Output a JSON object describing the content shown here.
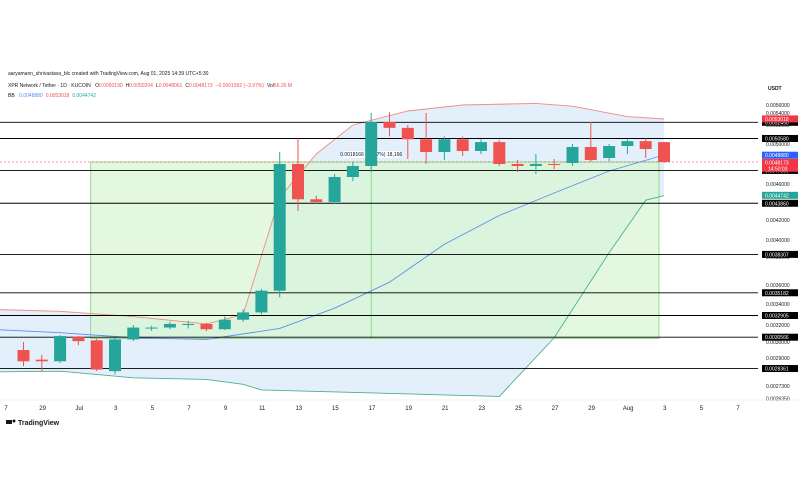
{
  "header": {
    "author_line": "aaryamann_shrivastava_blc created with TradingView.com, Aug 01, 2025 14:39 UTC+5:30",
    "symbol_line": "XPR Network / Tether · 1D · KUCOIN",
    "ohlc": [
      {
        "k": "O",
        "v": "0.0050190"
      },
      {
        "k": "H",
        "v": "0.0050204"
      },
      {
        "k": "L",
        "v": "0.0048061"
      },
      {
        "k": "C",
        "v": "0.0048173"
      },
      {
        "k": "",
        "v": "−0.0001992 (−3.97%)"
      },
      {
        "k": "Vol",
        "v": "56.26 M"
      }
    ],
    "bb_label": "BB",
    "bb_values": [
      "0.0048880",
      "0.0053018",
      "0.0044742"
    ]
  },
  "currency": "USDT",
  "branding": "TradingView",
  "colors": {
    "up": "#26a69a",
    "down": "#ef5350",
    "upper_band": "#f28b82",
    "basis": "#5b8fe8",
    "lower_band": "#4caf8f",
    "band_fill": "#e3f0fb",
    "range_fill": "#d7f5d0",
    "range_border": "#7ed37a",
    "basis_tag": "#2962ff",
    "price_tag": "#f23645",
    "hline": "#000000"
  },
  "chart_data": {
    "type": "candlestick",
    "x_tick_labels": [
      "7",
      "29",
      "Jul",
      "3",
      "5",
      "7",
      "9",
      "11",
      "13",
      "15",
      "17",
      "19",
      "21",
      "23",
      "25",
      "27",
      "29",
      "Aug",
      "3",
      "5",
      "7"
    ],
    "y_range": [
      0.0026,
      0.0059
    ],
    "y_tick_labels": [
      "0.0056000",
      "0.0054000",
      "0.0052000",
      "0.0050000",
      "0.0046000",
      "0.0044000",
      "0.0042000",
      "0.0040000",
      "0.0038000",
      "0.0036000",
      "0.0034000",
      "0.0032000",
      "0.0030000",
      "0.0029000",
      "0.0027300",
      "0.0026350"
    ],
    "candles": [
      {
        "d": "Jun 27",
        "o": 0.00295,
        "h": 0.003,
        "l": 0.00285,
        "c": 0.00288
      },
      {
        "d": "Jun 28",
        "o": 0.00289,
        "h": 0.00292,
        "l": 0.00282,
        "c": 0.00288
      },
      {
        "d": "Jun 29",
        "o": 0.00288,
        "h": 0.00308,
        "l": 0.00287,
        "c": 0.00307
      },
      {
        "d": "Jun 30",
        "o": 0.00306,
        "h": 0.00307,
        "l": 0.00298,
        "c": 0.00301
      },
      {
        "d": "Jul 1",
        "o": 0.00302,
        "h": 0.00304,
        "l": 0.00282,
        "c": 0.00283
      },
      {
        "d": "Jul 2",
        "o": 0.00282,
        "h": 0.00305,
        "l": 0.0028,
        "c": 0.00303
      },
      {
        "d": "Jul 3",
        "o": 0.00303,
        "h": 0.0032,
        "l": 0.00301,
        "c": 0.00317
      },
      {
        "d": "Jul 4",
        "o": 0.00317,
        "h": 0.00319,
        "l": 0.00313,
        "c": 0.00317
      },
      {
        "d": "Jul 5",
        "o": 0.00317,
        "h": 0.00323,
        "l": 0.00315,
        "c": 0.00321
      },
      {
        "d": "Jul 6",
        "o": 0.0032,
        "h": 0.00324,
        "l": 0.00316,
        "c": 0.00321
      },
      {
        "d": "Jul 7",
        "o": 0.00321,
        "h": 0.00322,
        "l": 0.00313,
        "c": 0.00315
      },
      {
        "d": "Jul 8",
        "o": 0.00315,
        "h": 0.00328,
        "l": 0.00314,
        "c": 0.00325
      },
      {
        "d": "Jul 9",
        "o": 0.00325,
        "h": 0.00335,
        "l": 0.00323,
        "c": 0.00332
      },
      {
        "d": "Jul 10",
        "o": 0.00332,
        "h": 0.00356,
        "l": 0.0033,
        "c": 0.00354
      },
      {
        "d": "Jul 11",
        "o": 0.00354,
        "h": 0.00492,
        "l": 0.00347,
        "c": 0.0048
      },
      {
        "d": "Jul 12",
        "o": 0.0048,
        "h": 0.00506,
        "l": 0.0043,
        "c": 0.00443
      },
      {
        "d": "Jul 13",
        "o": 0.00443,
        "h": 0.00447,
        "l": 0.00438,
        "c": 0.0044
      },
      {
        "d": "Jul 14",
        "o": 0.0044,
        "h": 0.0047,
        "l": 0.00438,
        "c": 0.00467
      },
      {
        "d": "Jul 15",
        "o": 0.00467,
        "h": 0.00482,
        "l": 0.00463,
        "c": 0.00478
      },
      {
        "d": "Jul 16",
        "o": 0.00478,
        "h": 0.0054,
        "l": 0.00472,
        "c": 0.00525
      },
      {
        "d": "Jul 17",
        "o": 0.00525,
        "h": 0.00542,
        "l": 0.00508,
        "c": 0.00517
      },
      {
        "d": "Jul 18",
        "o": 0.00517,
        "h": 0.0052,
        "l": 0.00485,
        "c": 0.00505
      },
      {
        "d": "Jul 19",
        "o": 0.00505,
        "h": 0.0054,
        "l": 0.0048,
        "c": 0.00492
      },
      {
        "d": "Jul 20",
        "o": 0.00492,
        "h": 0.00508,
        "l": 0.00484,
        "c": 0.00505
      },
      {
        "d": "Jul 21",
        "o": 0.00505,
        "h": 0.00508,
        "l": 0.00488,
        "c": 0.00493
      },
      {
        "d": "Jul 22",
        "o": 0.00493,
        "h": 0.00505,
        "l": 0.0049,
        "c": 0.00502
      },
      {
        "d": "Jul 23",
        "o": 0.00502,
        "h": 0.00504,
        "l": 0.00478,
        "c": 0.0048
      },
      {
        "d": "Jul 24",
        "o": 0.0048,
        "h": 0.00484,
        "l": 0.00472,
        "c": 0.00478
      },
      {
        "d": "Jul 25",
        "o": 0.00478,
        "h": 0.0049,
        "l": 0.0047,
        "c": 0.0048
      },
      {
        "d": "Jul 26",
        "o": 0.0048,
        "h": 0.00485,
        "l": 0.00475,
        "c": 0.00479
      },
      {
        "d": "Jul 27",
        "o": 0.00481,
        "h": 0.005,
        "l": 0.00478,
        "c": 0.00497
      },
      {
        "d": "Jul 28",
        "o": 0.00497,
        "h": 0.00525,
        "l": 0.00482,
        "c": 0.00484
      },
      {
        "d": "Jul 29",
        "o": 0.00486,
        "h": 0.005,
        "l": 0.00483,
        "c": 0.00498
      },
      {
        "d": "Jul 30",
        "o": 0.00498,
        "h": 0.00505,
        "l": 0.0049,
        "c": 0.00503
      },
      {
        "d": "Jul 31",
        "o": 0.00503,
        "h": 0.00506,
        "l": 0.00486,
        "c": 0.00495
      },
      {
        "d": "Aug 1",
        "o": 0.00502,
        "h": 0.00502,
        "l": 0.00481,
        "c": 0.00482
      }
    ],
    "bollinger": {
      "upper": [
        {
          "d": "Jun 21",
          "v": 0.00337
        },
        {
          "d": "Jun 29",
          "v": 0.00333
        },
        {
          "d": "Jul 3",
          "v": 0.00328
        },
        {
          "d": "Jul 7",
          "v": 0.00321
        },
        {
          "d": "Jul 9",
          "v": 0.0033
        },
        {
          "d": "Jul 11",
          "v": 0.00445
        },
        {
          "d": "Jul 13",
          "v": 0.0049
        },
        {
          "d": "Jul 15",
          "v": 0.0052
        },
        {
          "d": "Jul 18",
          "v": 0.00545
        },
        {
          "d": "Jul 21",
          "v": 0.0056
        },
        {
          "d": "Jul 25",
          "v": 0.00564
        },
        {
          "d": "Jul 27",
          "v": 0.00557
        },
        {
          "d": "Jul 30",
          "v": 0.00534
        },
        {
          "d": "Aug 1",
          "v": 0.0053
        }
      ],
      "basis": [
        {
          "d": "Jun 21",
          "v": 0.00319
        },
        {
          "d": "Jun 29",
          "v": 0.00311
        },
        {
          "d": "Jul 3",
          "v": 0.00305
        },
        {
          "d": "Jul 7",
          "v": 0.00303
        },
        {
          "d": "Jul 11",
          "v": 0.00316
        },
        {
          "d": "Jul 14",
          "v": 0.00336
        },
        {
          "d": "Jul 17",
          "v": 0.00362
        },
        {
          "d": "Jul 20",
          "v": 0.00395
        },
        {
          "d": "Jul 23",
          "v": 0.00425
        },
        {
          "d": "Jul 26",
          "v": 0.0045
        },
        {
          "d": "Jul 29",
          "v": 0.00473
        },
        {
          "d": "Aug 1",
          "v": 0.00489
        }
      ],
      "lower": [
        {
          "d": "Jun 21",
          "v": 0.00281
        },
        {
          "d": "Jun 29",
          "v": 0.00282
        },
        {
          "d": "Jul 3",
          "v": 0.00278
        },
        {
          "d": "Jul 7",
          "v": 0.00277
        },
        {
          "d": "Jul 9",
          "v": 0.00274
        },
        {
          "d": "Jul 10",
          "v": 0.0027
        },
        {
          "d": "Jul 23",
          "v": 0.00265
        },
        {
          "d": "Jul 26",
          "v": 0.00305
        },
        {
          "d": "Jul 29",
          "v": 0.00385
        },
        {
          "d": "Jul 31",
          "v": 0.00442
        },
        {
          "d": "Aug 1",
          "v": 0.00447
        }
      ]
    },
    "horizontal_levels": [
      {
        "value": 0.005245,
        "label": "0.0052450"
      },
      {
        "value": 0.005058,
        "label": "0.0050580"
      },
      {
        "value": 0.0047359,
        "label": "0.0047359"
      },
      {
        "value": 0.004386,
        "label": "0.0043860"
      },
      {
        "value": 0.0038307,
        "label": "0.0038307"
      },
      {
        "value": 0.0035182,
        "label": "0.0035182"
      },
      {
        "value": 0.0032905,
        "label": "0.0032905"
      },
      {
        "value": 0.0030566,
        "label": "0.0030566"
      },
      {
        "value": 0.0028361,
        "label": "0.0028361"
      }
    ],
    "price_tags": [
      {
        "value": 0.0053018,
        "label": "0.0053018",
        "role": "upper"
      },
      {
        "value": 0.004888,
        "label": "0.0048880",
        "role": "basis"
      },
      {
        "value": 0.0048173,
        "label": "0.0048173",
        "role": "price",
        "extra": "14:50:03"
      },
      {
        "value": 0.0044742,
        "label": "0.0044742",
        "role": "lower"
      }
    ],
    "range_annotation": {
      "start": "Jul 1",
      "end": "Aug 1",
      "top": 0.00482,
      "bottom": 0.00304,
      "cross": "Jul 16",
      "label": "0.0018166 (60.47%) 18,166"
    }
  }
}
